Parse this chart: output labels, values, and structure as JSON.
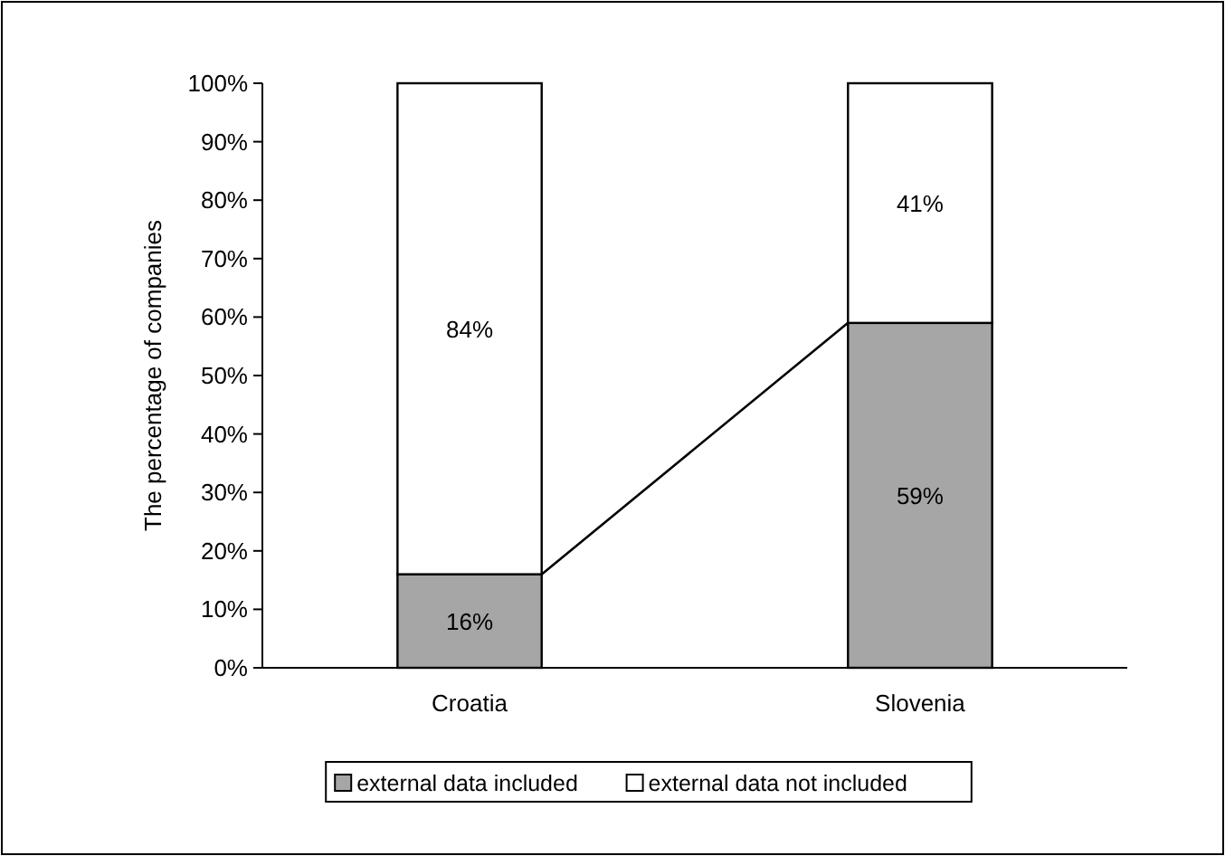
{
  "chart_data": {
    "type": "bar",
    "stacked": true,
    "ylabel": "The percentage of companies",
    "categories": [
      "Croatia",
      "Slovenia"
    ],
    "ylim": [
      0,
      100
    ],
    "yticks": [
      {
        "value": 0,
        "label": "0%"
      },
      {
        "value": 10,
        "label": "10%"
      },
      {
        "value": 20,
        "label": "20%"
      },
      {
        "value": 30,
        "label": "30%"
      },
      {
        "value": 40,
        "label": "40%"
      },
      {
        "value": 50,
        "label": "50%"
      },
      {
        "value": 60,
        "label": "60%"
      },
      {
        "value": 70,
        "label": "70%"
      },
      {
        "value": 80,
        "label": "80%"
      },
      {
        "value": 90,
        "label": "90%"
      },
      {
        "value": 100,
        "label": "100%"
      }
    ],
    "legend": "bottom",
    "grid": false,
    "series": [
      {
        "name": "external data included",
        "color": "#a6a6a6",
        "values": [
          16,
          59
        ],
        "value_labels": [
          "16%",
          "59%"
        ]
      },
      {
        "name": "external data not included",
        "color": "#ffffff",
        "values": [
          84,
          41
        ],
        "value_labels": [
          "84%",
          "41%"
        ]
      }
    ]
  }
}
